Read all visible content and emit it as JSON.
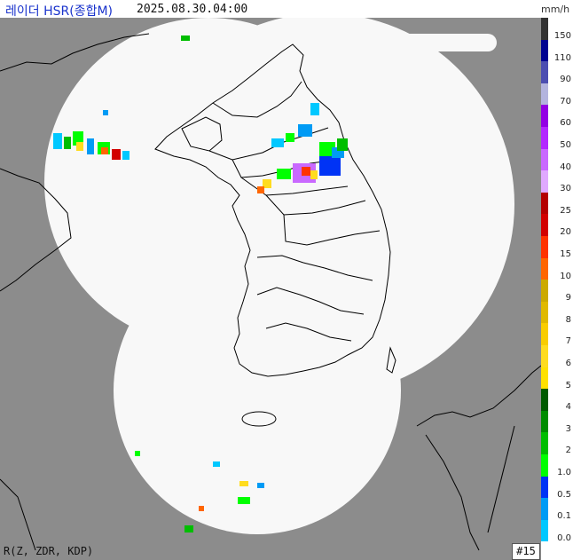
{
  "header": {
    "title": "레이더 HSR(종합M)",
    "timestamp": "2025.08.30.04:00",
    "unit": "mm/h"
  },
  "legend": {
    "levels": [
      {
        "label": "150",
        "color": "#333333"
      },
      {
        "label": "110",
        "color": "#000390"
      },
      {
        "label": "90",
        "color": "#4c4eb1"
      },
      {
        "label": "70",
        "color": "#b3b4de"
      },
      {
        "label": "60",
        "color": "#9300e4"
      },
      {
        "label": "50",
        "color": "#b329ff"
      },
      {
        "label": "40",
        "color": "#c969ff"
      },
      {
        "label": "30",
        "color": "#e0a9ff"
      },
      {
        "label": "25",
        "color": "#b40000"
      },
      {
        "label": "20",
        "color": "#d20000"
      },
      {
        "label": "15",
        "color": "#ff3300"
      },
      {
        "label": "10",
        "color": "#ff6600"
      },
      {
        "label": "9",
        "color": "#ccaa00"
      },
      {
        "label": "8",
        "color": "#e0b900"
      },
      {
        "label": "7",
        "color": "#f9cd00"
      },
      {
        "label": "6",
        "color": "#ffdc1f"
      },
      {
        "label": "5",
        "color": "#ffe100"
      },
      {
        "label": "4",
        "color": "#005a00"
      },
      {
        "label": "3",
        "color": "#008c00"
      },
      {
        "label": "2",
        "color": "#00be00"
      },
      {
        "label": "1.0",
        "color": "#00ff00"
      },
      {
        "label": "0.5",
        "color": "#0033f5"
      },
      {
        "label": "0.1",
        "color": "#009bf5"
      },
      {
        "label": "0.0",
        "color": "#00c8ff"
      }
    ]
  },
  "footer": {
    "variables": "R(Z, ZDR, KDP)",
    "frame_number": "#15"
  },
  "colors": {
    "outside_coverage": "#8c8c8c",
    "coverage_area": "#f8f8f8",
    "coastline": "#000000",
    "title_color": "#1a33cc"
  }
}
